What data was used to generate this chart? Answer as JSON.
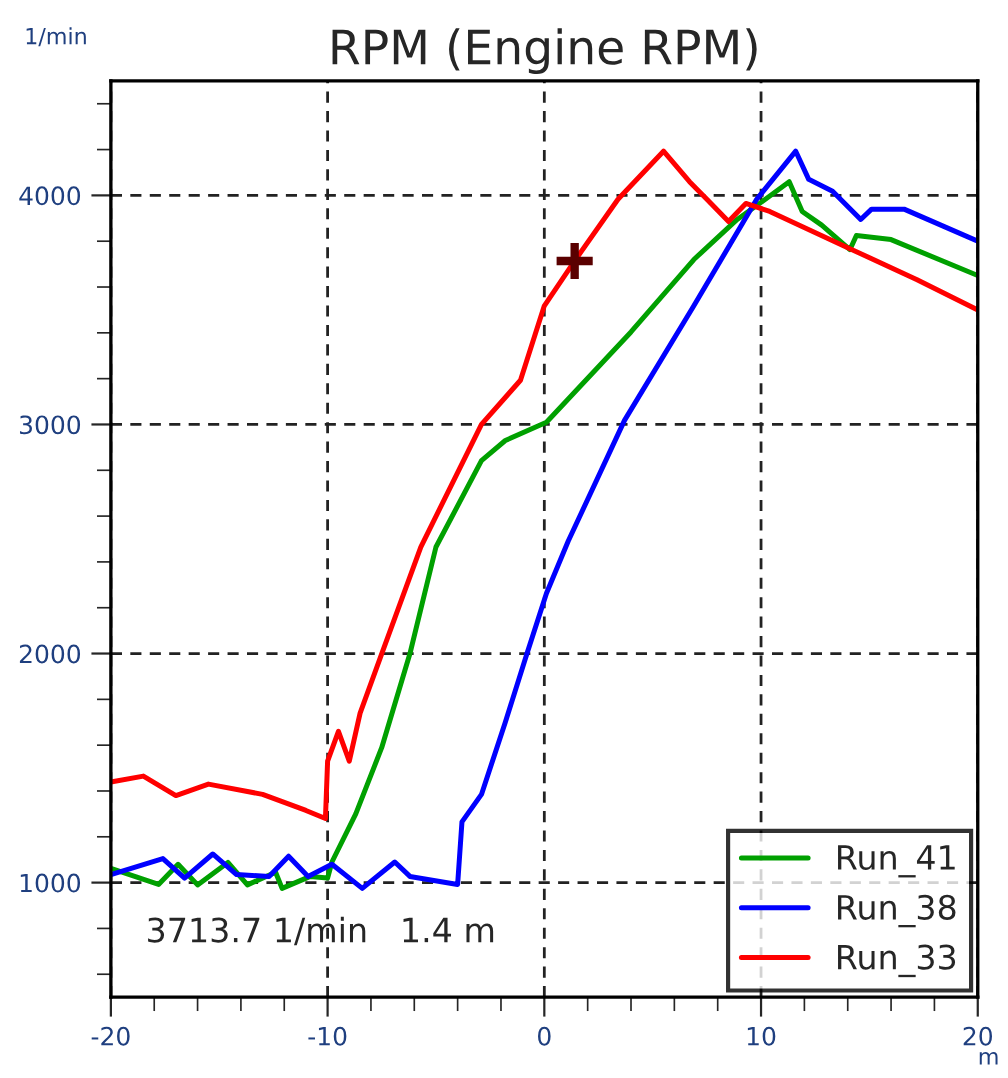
{
  "chart_data": {
    "type": "line",
    "title": "RPM (Engine RPM)",
    "ylabel": "1/min",
    "xlabel": "m",
    "xlim": [
      -20,
      20
    ],
    "ylim": [
      500,
      4500
    ],
    "xticks": [
      -20,
      {
        "value": -18,
        "label": null
      },
      {
        "value": -16,
        "label": null
      },
      {
        "value": -14,
        "label": null
      },
      {
        "value": -12,
        "label": null
      },
      -10,
      {
        "value": -8,
        "label": null
      },
      {
        "value": -6,
        "label": null
      },
      {
        "value": -4,
        "label": null
      },
      {
        "value": -2,
        "label": null
      },
      0,
      {
        "value": 2,
        "label": null
      },
      {
        "value": 4,
        "label": null
      },
      {
        "value": 6,
        "label": null
      },
      {
        "value": 8,
        "label": null
      },
      10,
      {
        "value": 12,
        "label": null
      },
      {
        "value": 14,
        "label": null
      },
      {
        "value": 16,
        "label": null
      },
      {
        "value": 18,
        "label": null
      },
      20
    ],
    "yticks": [
      {
        "value": 600,
        "label": null
      },
      {
        "value": 800,
        "label": null
      },
      1000,
      {
        "value": 1200,
        "label": null
      },
      {
        "value": 1400,
        "label": null
      },
      {
        "value": 1600,
        "label": null
      },
      {
        "value": 1800,
        "label": null
      },
      2000,
      {
        "value": 2200,
        "label": null
      },
      {
        "value": 2400,
        "label": null
      },
      {
        "value": 2600,
        "label": null
      },
      {
        "value": 2800,
        "label": null
      },
      3000,
      {
        "value": 3200,
        "label": null
      },
      {
        "value": 3400,
        "label": null
      },
      {
        "value": 3600,
        "label": null
      },
      {
        "value": 3800,
        "label": null
      },
      4000,
      {
        "value": 4200,
        "label": null
      },
      {
        "value": 4400,
        "label": null
      }
    ],
    "grid": true,
    "legend": "bottom right",
    "line_style": "solid",
    "marker": "none",
    "series": [
      {
        "type": "scatter",
        "marker": "cross",
        "color": "#5a0000",
        "x": [
          1.4
        ],
        "values": [
          3713.7
        ]
      },
      {
        "name": "Run_41",
        "color": "#00a000",
        "x": [
          -20,
          -17.8,
          -16.9,
          -16,
          -14.6,
          -13.7,
          -12.4,
          -12.1,
          -10.8,
          -10.0,
          -9.8,
          -8.7,
          -7.5,
          -6.2,
          -5.0,
          -2.9,
          -1.8,
          0.1,
          4.0,
          6.9,
          8.9,
          10.2,
          11.3,
          11.9,
          12.8,
          14.1,
          14.4,
          16.0,
          20.0
        ],
        "values": [
          1062,
          992,
          1080,
          990,
          1088,
          990,
          1045,
          975,
          1027,
          1020,
          1090,
          1300,
          1590,
          2000,
          2465,
          2842,
          2930,
          3010,
          3404,
          3720,
          3895,
          3983,
          4060,
          3930,
          3870,
          3763,
          3825,
          3807,
          3650
        ]
      },
      {
        "name": "Run_38",
        "color": "#0000ff",
        "x": [
          -20,
          -17.6,
          -16.6,
          -15.3,
          -14.2,
          -12.7,
          -11.8,
          -10.9,
          -9.8,
          -8.4,
          -6.9,
          -6.2,
          -4.0,
          -3.8,
          -2.9,
          -1.8,
          -0.8,
          0.1,
          1.1,
          3.7,
          6.9,
          9.8,
          11.6,
          12.2,
          13.3,
          14.6,
          15.1,
          16.6,
          20.0
        ],
        "values": [
          1035,
          1105,
          1020,
          1125,
          1035,
          1027,
          1115,
          1027,
          1080,
          975,
          1090,
          1027,
          992,
          1265,
          1385,
          1700,
          2000,
          2263,
          2490,
          3018,
          3518,
          3983,
          4193,
          4070,
          4018,
          3895,
          3940,
          3940,
          3800
        ]
      },
      {
        "name": "Run_33",
        "color": "#ff0000",
        "x": [
          -20,
          -18.5,
          -17.0,
          -15.5,
          -13.0,
          -11.0,
          -10.1,
          -10.0,
          -9.5,
          -9.0,
          -8.5,
          -7.5,
          -5.7,
          -2.9,
          -1.1,
          0.0,
          1.4,
          3.4,
          5.5,
          6.7,
          7.5,
          8.5,
          9.3,
          10.4,
          14.2,
          17.2,
          20.0
        ],
        "values": [
          1439,
          1465,
          1380,
          1430,
          1385,
          1315,
          1280,
          1530,
          1660,
          1530,
          1740,
          2000,
          2465,
          3000,
          3193,
          3518,
          3714,
          3983,
          4193,
          4060,
          3983,
          3886,
          3965,
          3930,
          3763,
          3632,
          3500
        ]
      }
    ],
    "annotations": [
      "3713.7 1/min   1.4 m"
    ]
  }
}
